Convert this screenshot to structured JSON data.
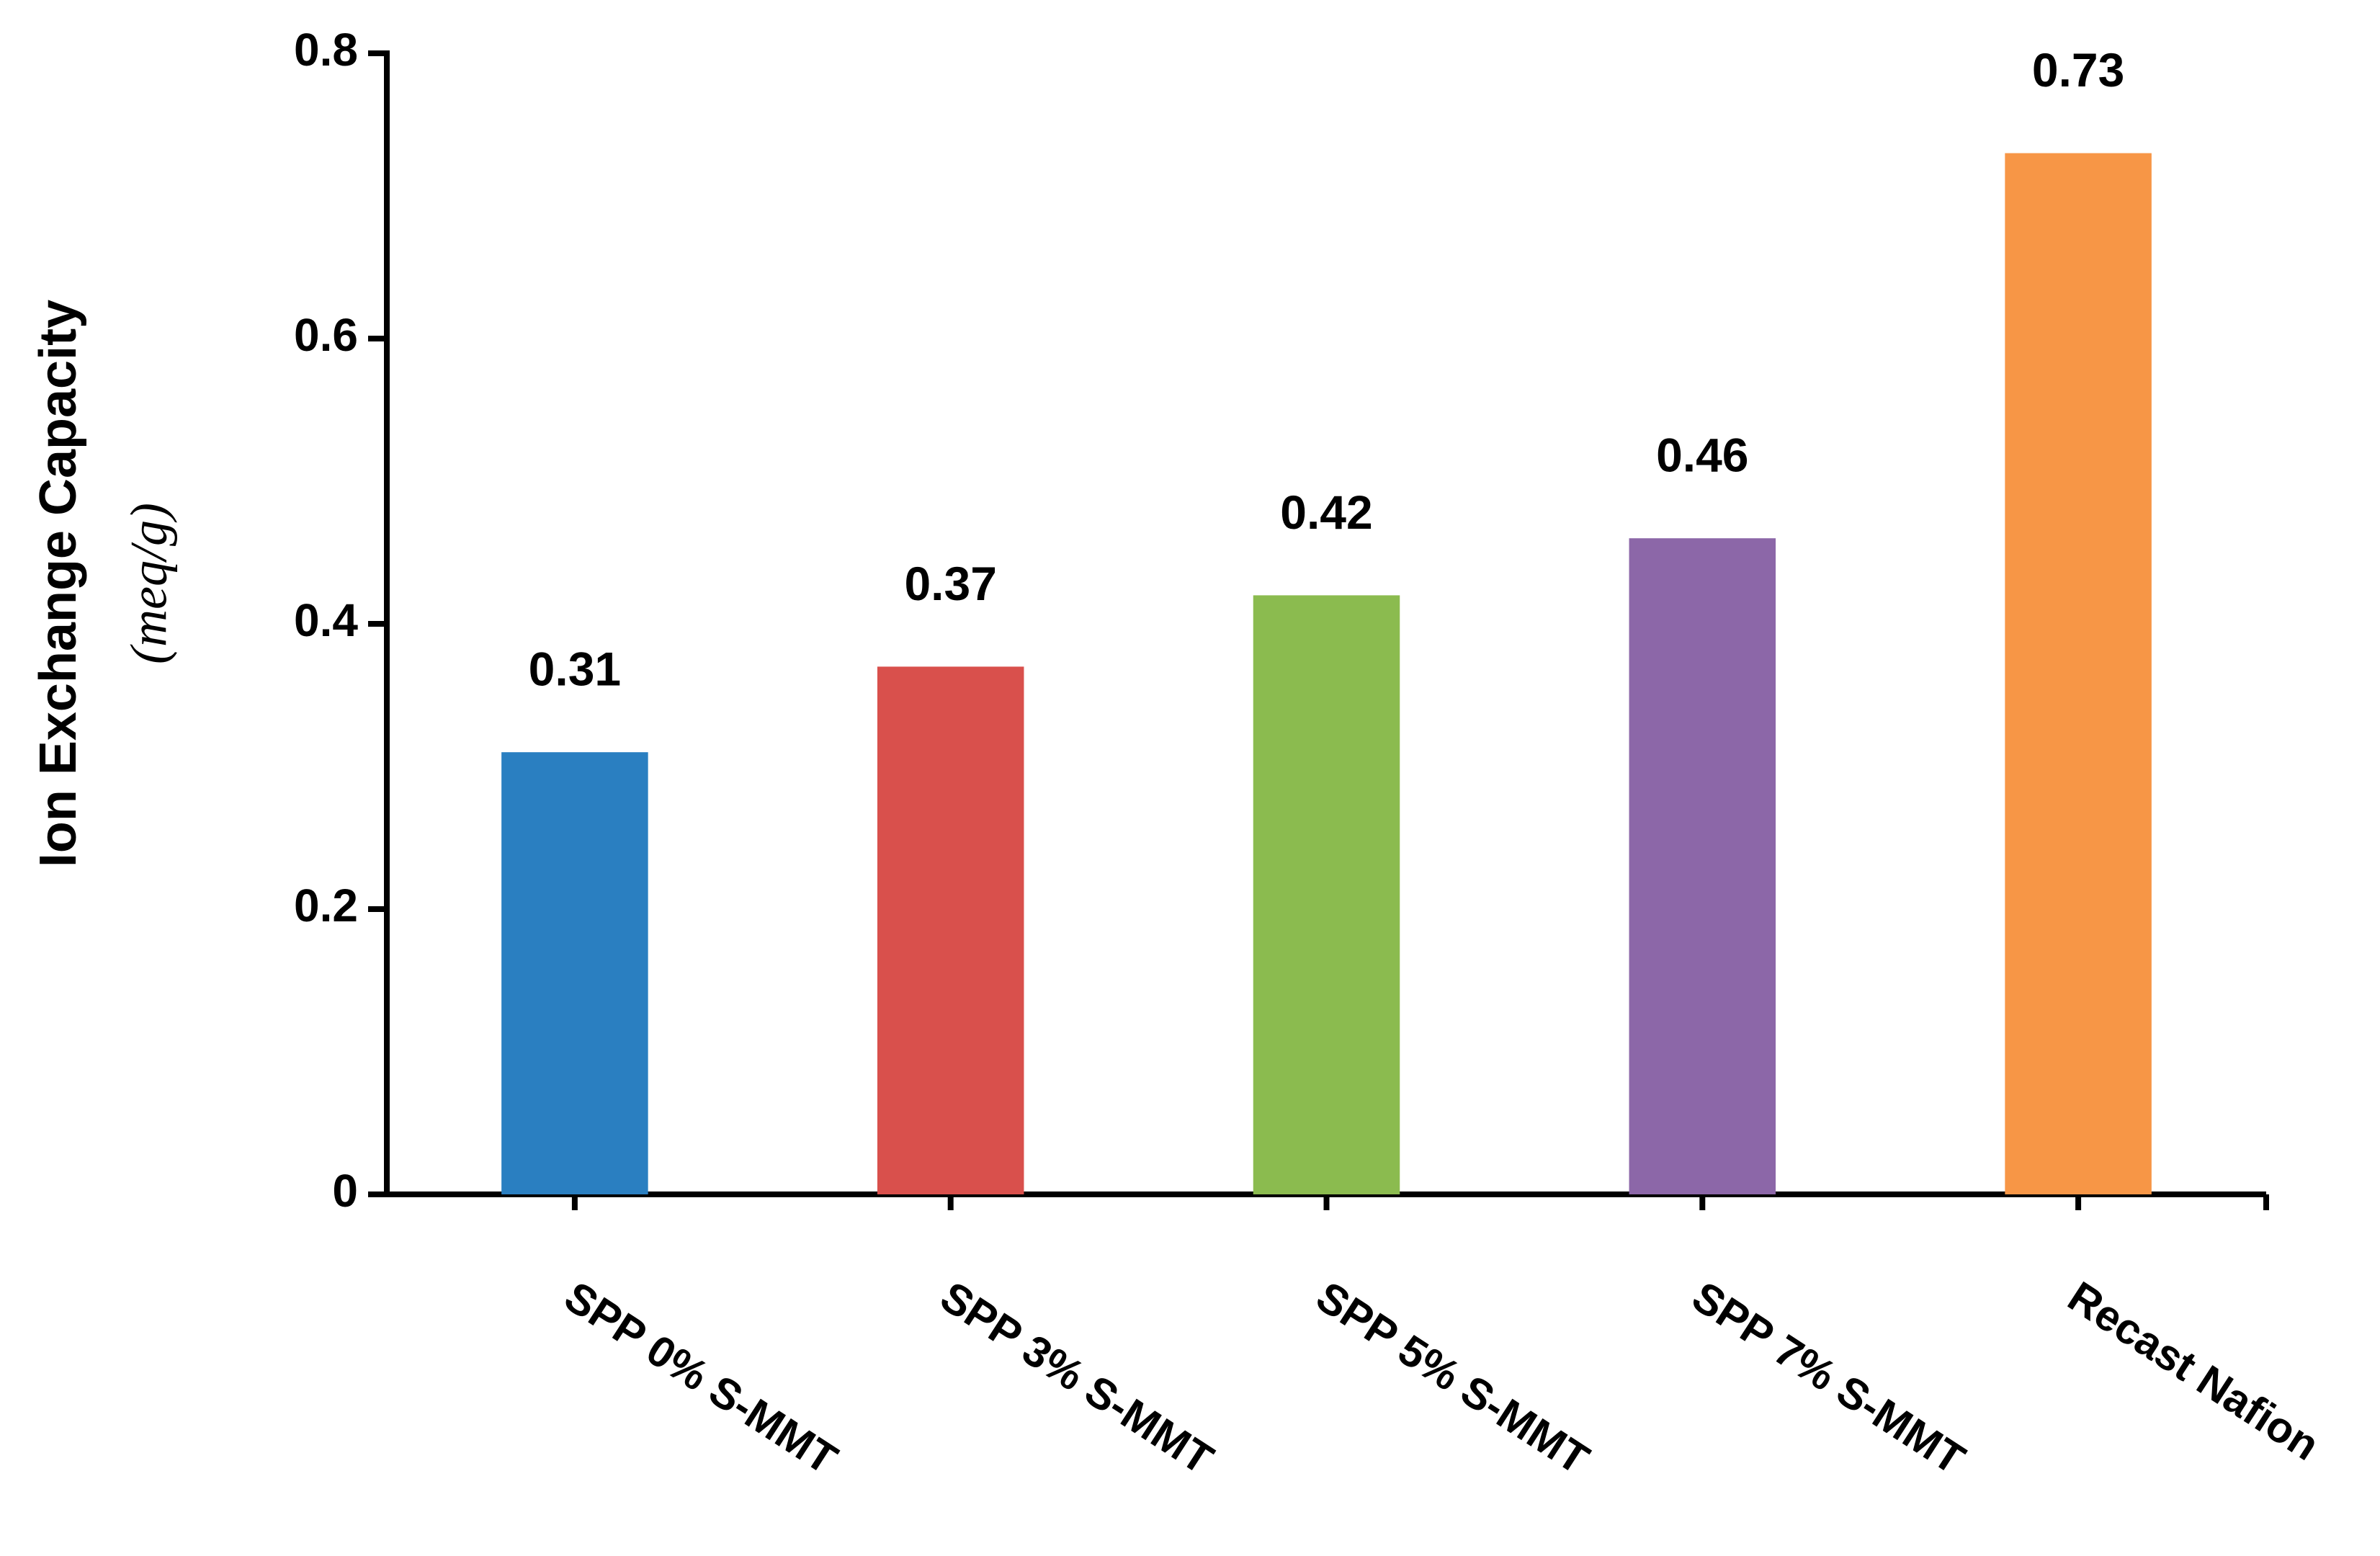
{
  "chart_data": {
    "type": "bar",
    "y_label": "Ion Exchange Capacity",
    "y_label_unit": "(meq/g)",
    "categories": [
      "SPP 0% S-MMT",
      "SPP 3% S-MMT",
      "SPP 5% S-MMT",
      "SPP 7% S-MMT",
      "Recast Nafion"
    ],
    "values": [
      0.31,
      0.37,
      0.42,
      0.46,
      0.73
    ],
    "colors": [
      "#2a7fc1",
      "#d9504c",
      "#8bbb4f",
      "#8c67a8",
      "#f79646"
    ],
    "ylim": [
      0,
      0.8
    ],
    "yticks": [
      0,
      0.2,
      0.4,
      0.6,
      0.8
    ],
    "grid": false
  }
}
